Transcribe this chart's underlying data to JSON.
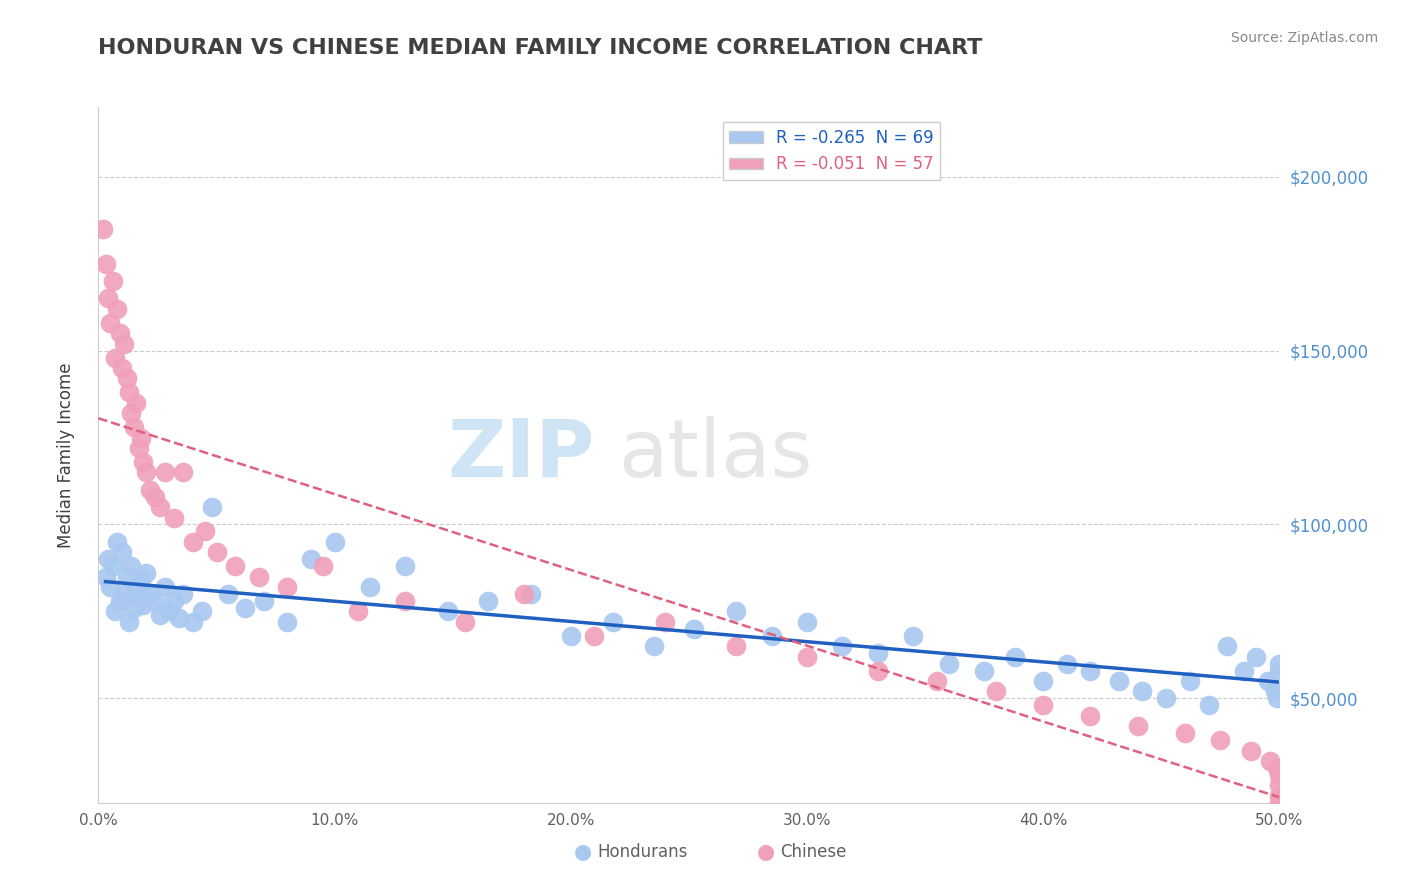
{
  "title": "HONDURAN VS CHINESE MEDIAN FAMILY INCOME CORRELATION CHART",
  "source": "Source: ZipAtlas.com",
  "xlabel": "",
  "ylabel": "Median Family Income",
  "xlim": [
    0.0,
    0.5
  ],
  "ylim": [
    20000,
    220000
  ],
  "yticks": [
    50000,
    100000,
    150000,
    200000
  ],
  "ytick_labels": [
    "$50,000",
    "$100,000",
    "$150,000",
    "$200,000"
  ],
  "xticks": [
    0.0,
    0.1,
    0.2,
    0.3,
    0.4,
    0.5
  ],
  "xtick_labels": [
    "0.0%",
    "10.0%",
    "20.0%",
    "30.0%",
    "40.0%",
    "50.0%"
  ],
  "honduran_color": "#a8c8f0",
  "chinese_color": "#f0a0b8",
  "honduran_line_color": "#2060c0",
  "chinese_line_color": "#e06080",
  "R_honduran": -0.265,
  "N_honduran": 69,
  "R_chinese": -0.051,
  "N_chinese": 57,
  "watermark_zip": "ZIP",
  "watermark_atlas": "atlas",
  "background_color": "#ffffff",
  "grid_color": "#cccccc",
  "title_color": "#404040",
  "axis_label_color": "#404040",
  "right_yaxis_color": "#5090d0",
  "honduran_x": [
    0.003,
    0.004,
    0.005,
    0.006,
    0.007,
    0.008,
    0.009,
    0.01,
    0.011,
    0.012,
    0.013,
    0.014,
    0.015,
    0.016,
    0.017,
    0.018,
    0.019,
    0.02,
    0.022,
    0.024,
    0.026,
    0.028,
    0.03,
    0.032,
    0.034,
    0.036,
    0.04,
    0.044,
    0.048,
    0.055,
    0.062,
    0.07,
    0.08,
    0.09,
    0.1,
    0.115,
    0.13,
    0.148,
    0.165,
    0.183,
    0.2,
    0.218,
    0.235,
    0.252,
    0.27,
    0.285,
    0.3,
    0.315,
    0.33,
    0.345,
    0.36,
    0.375,
    0.388,
    0.4,
    0.41,
    0.42,
    0.432,
    0.442,
    0.452,
    0.462,
    0.47,
    0.478,
    0.485,
    0.49,
    0.495,
    0.498,
    0.499,
    0.5,
    0.5
  ],
  "honduran_y": [
    85000,
    90000,
    82000,
    88000,
    75000,
    95000,
    78000,
    92000,
    80000,
    85000,
    72000,
    88000,
    76000,
    82000,
    79000,
    84000,
    77000,
    86000,
    80000,
    78000,
    74000,
    82000,
    75000,
    78000,
    73000,
    80000,
    72000,
    75000,
    105000,
    80000,
    76000,
    78000,
    72000,
    90000,
    95000,
    82000,
    88000,
    75000,
    78000,
    80000,
    68000,
    72000,
    65000,
    70000,
    75000,
    68000,
    72000,
    65000,
    63000,
    68000,
    60000,
    58000,
    62000,
    55000,
    60000,
    58000,
    55000,
    52000,
    50000,
    55000,
    48000,
    65000,
    58000,
    62000,
    55000,
    52000,
    50000,
    60000,
    58000
  ],
  "chinese_x": [
    0.002,
    0.003,
    0.004,
    0.005,
    0.006,
    0.007,
    0.008,
    0.009,
    0.01,
    0.011,
    0.012,
    0.013,
    0.014,
    0.015,
    0.016,
    0.017,
    0.018,
    0.019,
    0.02,
    0.022,
    0.024,
    0.026,
    0.028,
    0.032,
    0.036,
    0.04,
    0.045,
    0.05,
    0.058,
    0.068,
    0.08,
    0.095,
    0.11,
    0.13,
    0.155,
    0.18,
    0.21,
    0.24,
    0.27,
    0.3,
    0.33,
    0.355,
    0.38,
    0.4,
    0.42,
    0.44,
    0.46,
    0.475,
    0.488,
    0.496,
    0.499,
    0.5,
    0.5,
    0.5,
    0.5,
    0.5,
    0.5
  ],
  "chinese_y": [
    185000,
    175000,
    165000,
    158000,
    170000,
    148000,
    162000,
    155000,
    145000,
    152000,
    142000,
    138000,
    132000,
    128000,
    135000,
    122000,
    125000,
    118000,
    115000,
    110000,
    108000,
    105000,
    115000,
    102000,
    115000,
    95000,
    98000,
    92000,
    88000,
    85000,
    82000,
    88000,
    75000,
    78000,
    72000,
    80000,
    68000,
    72000,
    65000,
    62000,
    58000,
    55000,
    52000,
    48000,
    45000,
    42000,
    40000,
    38000,
    35000,
    32000,
    30000,
    28000,
    25000,
    22000,
    20000,
    18000,
    15000
  ]
}
